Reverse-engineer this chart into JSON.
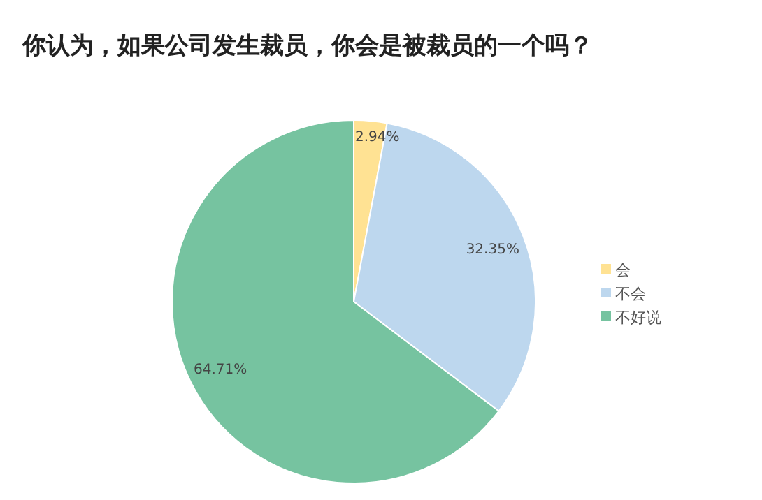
{
  "chart_data": {
    "type": "pie",
    "title": "你认为，如果公司发生裁员，你会是被裁员的一个吗？",
    "categories": [
      "会",
      "不会",
      "不好说"
    ],
    "values": [
      2.94,
      32.35,
      64.71
    ],
    "value_labels": [
      "2.94%",
      "32.35%",
      "64.71%"
    ],
    "colors": [
      "#ffe293",
      "#bdd7ee",
      "#76c3a0"
    ],
    "legend": "right"
  }
}
